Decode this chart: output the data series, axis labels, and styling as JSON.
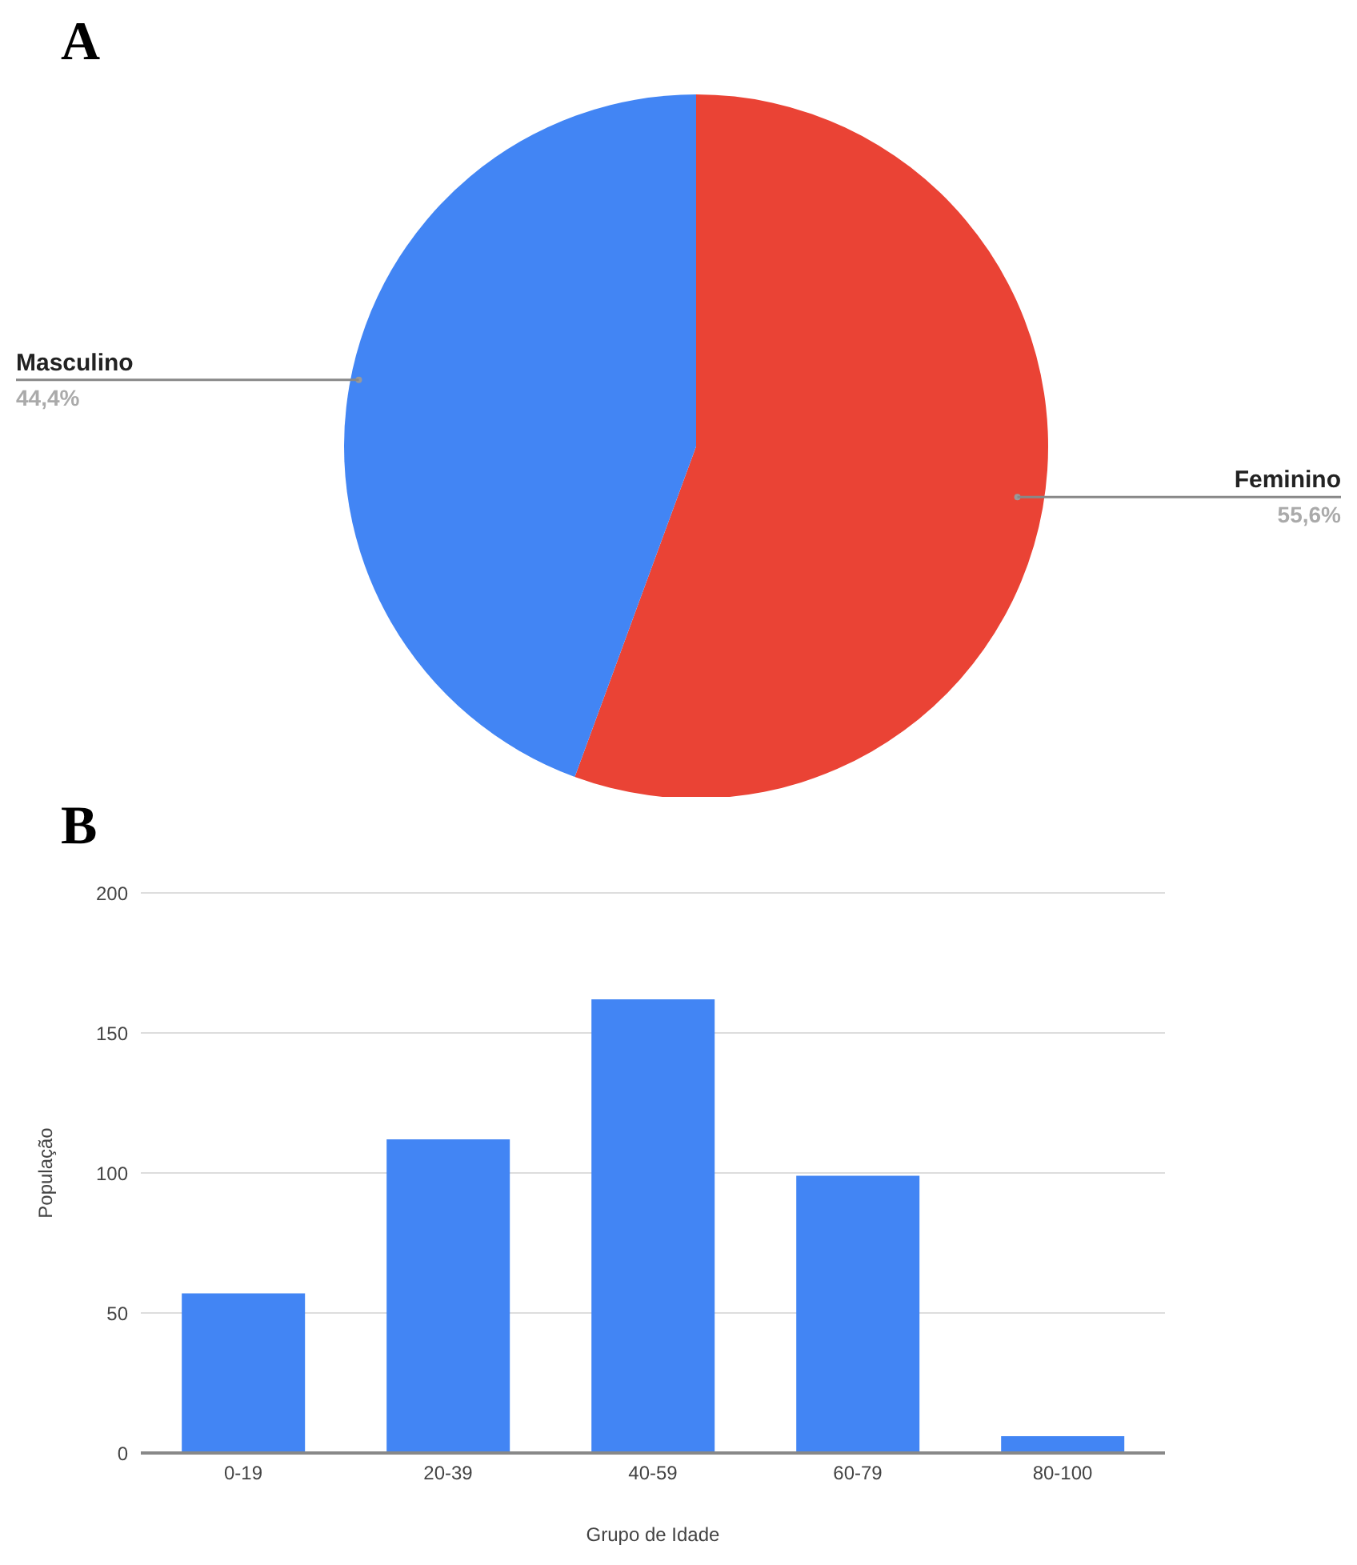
{
  "chart_data": [
    {
      "type": "pie",
      "title": "A",
      "categories": [
        "Feminino",
        "Masculino"
      ],
      "values": [
        55.6,
        44.4
      ],
      "colors": [
        "#ea4335",
        "#4285f4"
      ],
      "value_labels": [
        "55,6%",
        "44,4%"
      ],
      "legend": false
    },
    {
      "type": "bar",
      "title": "B",
      "categories": [
        "0-19",
        "20-39",
        "40-59",
        "60-79",
        "80-100"
      ],
      "values": [
        57,
        112,
        162,
        99,
        6
      ],
      "color": "#4285f4",
      "xlabel": "Grupo de Idade",
      "ylabel": "População",
      "ylim": [
        0,
        200
      ],
      "yticks": [
        0,
        50,
        100,
        150,
        200
      ],
      "grid": "y",
      "legend": false
    }
  ]
}
